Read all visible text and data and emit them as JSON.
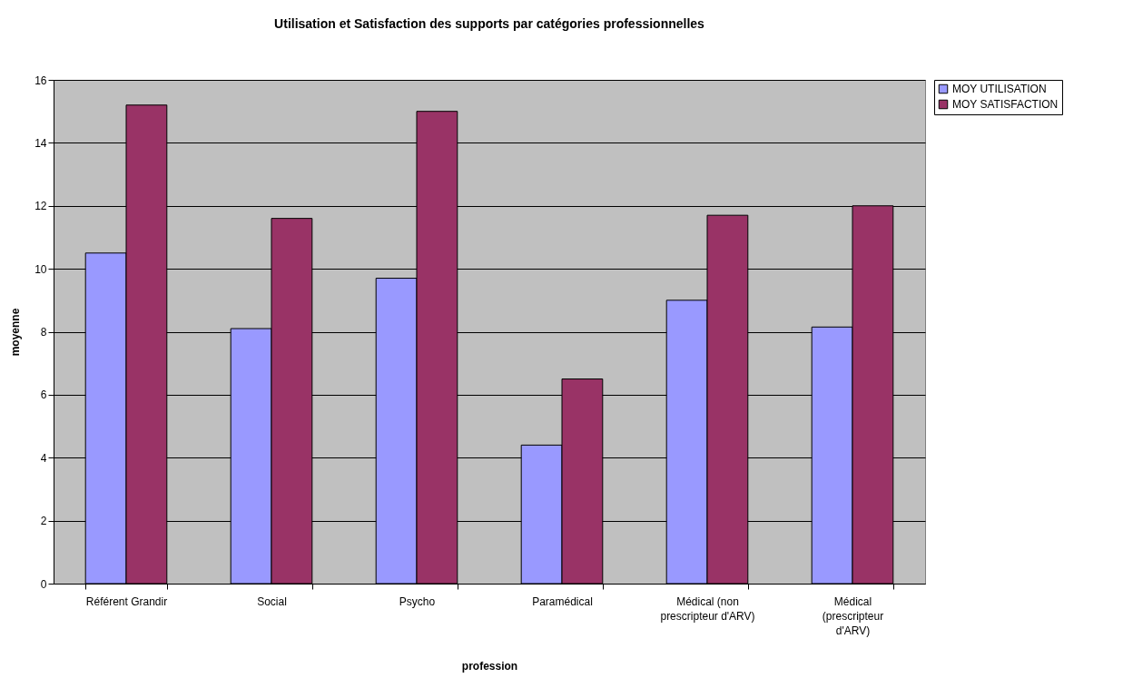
{
  "chart_data": {
    "type": "bar",
    "title": "Utilisation et Satisfaction des supports par catégories professionnelles",
    "xlabel": "profession",
    "ylabel": "moyenne",
    "categories": [
      "Référent Grandir",
      "Social",
      "Psycho",
      "Paramédical",
      "Médical (non prescripteur d'ARV)",
      "Médical (prescripteur d'ARV)"
    ],
    "series": [
      {
        "name": "MOY UTILISATION",
        "color": "#9999ff",
        "values": [
          10.5,
          8.1,
          9.7,
          4.4,
          9.0,
          8.15
        ]
      },
      {
        "name": "MOY SATISFACTION",
        "color": "#993366",
        "values": [
          15.2,
          11.6,
          15.0,
          6.5,
          11.7,
          12.0
        ]
      }
    ],
    "ylim": [
      0,
      16
    ],
    "yticks": [
      0,
      2,
      4,
      6,
      8,
      10,
      12,
      14,
      16
    ],
    "grid": "y",
    "legend": "right"
  }
}
